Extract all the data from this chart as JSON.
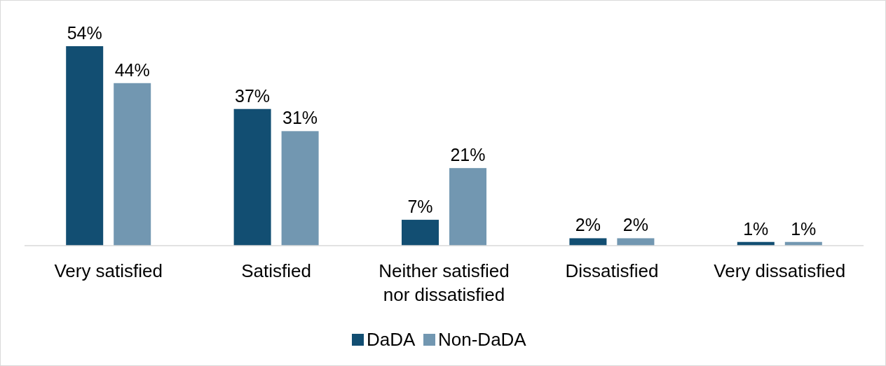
{
  "chart_data": {
    "type": "bar",
    "categories": [
      "Very satisfied",
      "Satisfied",
      "Neither satisfied nor dissatisfied",
      "Dissatisfied",
      "Very dissatisfied"
    ],
    "series": [
      {
        "name": "DaDA",
        "color": "#124e72",
        "values": [
          54,
          37,
          7,
          2,
          1
        ],
        "value_labels": [
          "54%",
          "37%",
          "7%",
          "2%",
          "1%"
        ]
      },
      {
        "name": "Non-DaDA",
        "color": "#7297b1",
        "values": [
          44,
          31,
          21,
          2,
          1
        ],
        "value_labels": [
          "44%",
          "31%",
          "21%",
          "2%",
          "1%"
        ]
      }
    ],
    "legend": "bottom"
  }
}
